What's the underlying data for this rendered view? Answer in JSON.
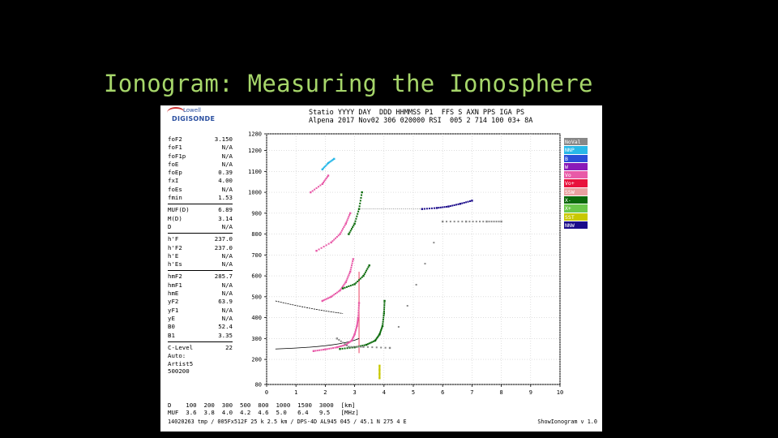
{
  "slide": {
    "title": "Ionogram: Measuring the Ionosphere"
  },
  "logo": {
    "top_text": "Lowell",
    "bottom_text": "DIGISONDE"
  },
  "header": {
    "line1": "Statio YYYY DAY  DDD HHMMSS P1  FFS S AXN PPS IGA PS",
    "line2": "Alpena 2017 Nov02 306 020000 RSI  005 2 714 100 03+ 8A"
  },
  "params": {
    "group1": [
      {
        "name": "foF2",
        "value": "3.150"
      },
      {
        "name": "foF1",
        "value": "N/A"
      },
      {
        "name": "foF1p",
        "value": "N/A"
      },
      {
        "name": "foE",
        "value": "N/A"
      },
      {
        "name": "foEp",
        "value": "0.39"
      },
      {
        "name": "fxI",
        "value": "4.00"
      },
      {
        "name": "foEs",
        "value": "N/A"
      },
      {
        "name": "fmin",
        "value": "1.53"
      }
    ],
    "group2": [
      {
        "name": "MUF(D)",
        "value": "6.89"
      },
      {
        "name": "M(D)",
        "value": "3.14"
      },
      {
        "name": "D",
        "value": "N/A"
      }
    ],
    "group3": [
      {
        "name": "h'F",
        "value": "237.0"
      },
      {
        "name": "h'F2",
        "value": "237.0"
      },
      {
        "name": "h'E",
        "value": "N/A"
      },
      {
        "name": "h'Es",
        "value": "N/A"
      }
    ],
    "group4": [
      {
        "name": "hmF2",
        "value": "285.7"
      },
      {
        "name": "hmF1",
        "value": "N/A"
      },
      {
        "name": "hmE",
        "value": "N/A"
      },
      {
        "name": "yF2",
        "value": "63.9"
      },
      {
        "name": "yF1",
        "value": "N/A"
      },
      {
        "name": "yE",
        "value": "N/A"
      },
      {
        "name": "B0",
        "value": "52.4"
      },
      {
        "name": "B1",
        "value": "3.35"
      }
    ],
    "group5": [
      {
        "name": "C-Level",
        "value": "22"
      }
    ]
  },
  "auto": {
    "line1": "Auto:",
    "line2": "Artist5",
    "line3": "500200"
  },
  "legend": {
    "items": [
      {
        "label": "NoVal",
        "color": "#888888"
      },
      {
        "label": "NNP",
        "color": "#29b8e8"
      },
      {
        "label": "B",
        "color": "#2a4fd8"
      },
      {
        "label": "W",
        "color": "#8a1ab8"
      },
      {
        "label": "Vo",
        "color": "#e85aa8"
      },
      {
        "label": "Vo+",
        "color": "#e8123c"
      },
      {
        "label": "SSW",
        "color": "#e8a0a0"
      },
      {
        "label": "X-",
        "color": "#0a6a0a"
      },
      {
        "label": "X+",
        "color": "#6ac84a"
      },
      {
        "label": "SST",
        "color": "#c8c800"
      },
      {
        "label": "NNW",
        "color": "#1a0a8a"
      }
    ]
  },
  "mufs": {
    "line1": "D    100  200  300  500  800  1000  1500  3000  [km]",
    "line2": "MUF  3.6  3.8  4.0  4.2  4.6  5.0   6.4   9.5   [MHz]"
  },
  "footer": {
    "left": "14020263 tmp / 005Fx512F 25 k 2.5 km / DPS-4D AL945 045 / 45.1 N 275 4 E",
    "right": "ShowIonogram v 1.0"
  },
  "chart_data": {
    "type": "scatter",
    "xlim": [
      0,
      10
    ],
    "ylim": [
      80,
      1280
    ],
    "x_ticks": [
      0,
      1,
      2,
      3,
      4,
      5,
      6,
      7,
      8,
      9,
      10
    ],
    "y_ticks": [
      80,
      200,
      300,
      400,
      500,
      600,
      700,
      800,
      900,
      1000,
      1100,
      1200,
      1280
    ],
    "grid": true,
    "traces": [
      {
        "name": "O-trace",
        "color": "#e85aa8",
        "points": [
          [
            1.6,
            240
          ],
          [
            2.0,
            248
          ],
          [
            2.4,
            258
          ],
          [
            2.7,
            270
          ],
          [
            2.9,
            290
          ],
          [
            3.0,
            320
          ],
          [
            3.08,
            360
          ],
          [
            3.12,
            400
          ],
          [
            3.15,
            470
          ]
        ]
      },
      {
        "name": "X-trace",
        "color": "#0a6a0a",
        "points": [
          [
            2.5,
            250
          ],
          [
            3.0,
            258
          ],
          [
            3.4,
            270
          ],
          [
            3.7,
            290
          ],
          [
            3.85,
            320
          ],
          [
            3.95,
            360
          ],
          [
            4.0,
            420
          ],
          [
            4.02,
            480
          ]
        ]
      },
      {
        "name": "O-2hop",
        "color": "#e85aa8",
        "points": [
          [
            1.9,
            480
          ],
          [
            2.2,
            500
          ],
          [
            2.5,
            530
          ],
          [
            2.7,
            570
          ],
          [
            2.85,
            620
          ],
          [
            2.95,
            680
          ]
        ]
      },
      {
        "name": "O-3hop",
        "color": "#e85aa8",
        "points": [
          [
            1.7,
            720
          ],
          [
            2.2,
            760
          ],
          [
            2.5,
            800
          ],
          [
            2.7,
            850
          ],
          [
            2.85,
            900
          ]
        ]
      },
      {
        "name": "O-4hop",
        "color": "#e85aa8",
        "points": [
          [
            1.5,
            1000
          ],
          [
            1.9,
            1040
          ],
          [
            2.1,
            1080
          ]
        ]
      },
      {
        "name": "X-2hop",
        "color": "#0a6a0a",
        "points": [
          [
            2.6,
            540
          ],
          [
            3.0,
            560
          ],
          [
            3.3,
            600
          ],
          [
            3.5,
            650
          ]
        ]
      },
      {
        "name": "X-high",
        "color": "#0a6a0a",
        "points": [
          [
            2.8,
            800
          ],
          [
            3.0,
            850
          ],
          [
            3.15,
            920
          ],
          [
            3.25,
            1000
          ]
        ]
      },
      {
        "name": "NNP-top",
        "color": "#29b8e8",
        "points": [
          [
            1.9,
            1110
          ],
          [
            2.1,
            1140
          ],
          [
            2.3,
            1160
          ]
        ]
      },
      {
        "name": "NNW-far",
        "color": "#1a0a8a",
        "points": [
          [
            5.3,
            920
          ],
          [
            5.8,
            925
          ],
          [
            6.2,
            932
          ],
          [
            6.6,
            945
          ],
          [
            7.0,
            960
          ]
        ]
      },
      {
        "name": "NoVal",
        "color": "#888888",
        "points": [
          [
            2.4,
            300
          ],
          [
            2.8,
            260
          ],
          [
            3.3,
            260
          ],
          [
            4.2,
            255
          ],
          [
            6.0,
            860
          ],
          [
            6.8,
            860
          ],
          [
            7.5,
            860
          ],
          [
            8.0,
            860
          ]
        ]
      },
      {
        "name": "SST",
        "color": "#c8c800",
        "points": [
          [
            3.85,
            110
          ],
          [
            3.85,
            130
          ],
          [
            3.85,
            150
          ],
          [
            3.85,
            170
          ]
        ]
      }
    ]
  }
}
